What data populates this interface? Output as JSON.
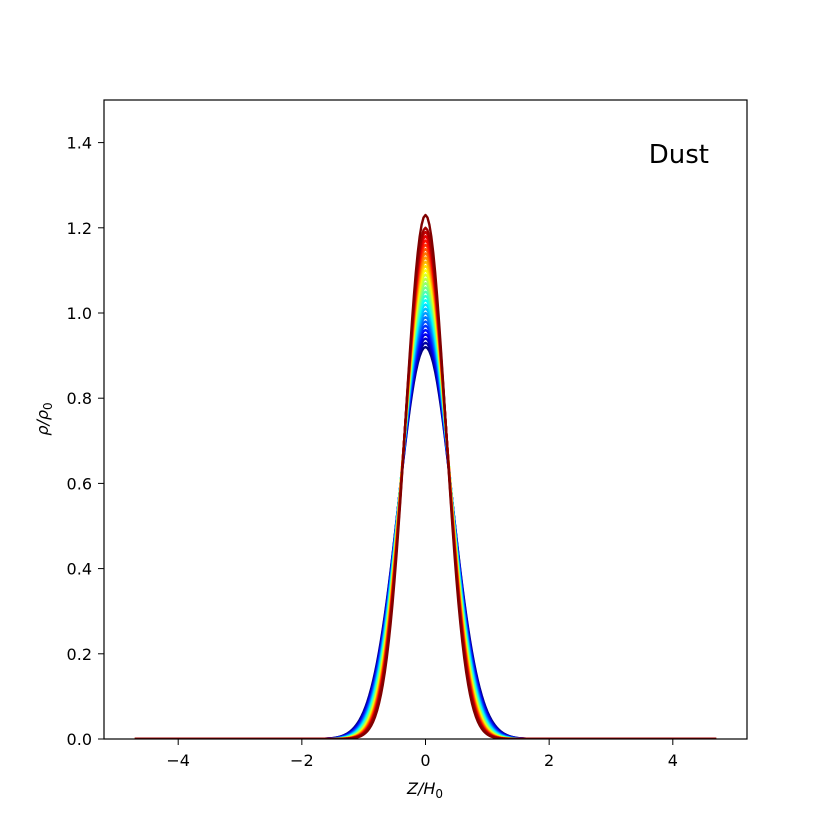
{
  "chart_data": {
    "type": "line",
    "title": "",
    "annotation": "Dust",
    "xlabel": "Z/H",
    "xlabel_sub": "0",
    "ylabel": "ρ/ρ",
    "ylabel_sub": "0",
    "xlim": [
      -5.2,
      5.2
    ],
    "ylim": [
      0.0,
      1.5
    ],
    "x_range": [
      -4.7,
      4.7
    ],
    "xticks": [
      -4,
      -2,
      0,
      2,
      4
    ],
    "xtick_labels": [
      "−4",
      "−2",
      "0",
      "2",
      "4"
    ],
    "yticks": [
      0.0,
      0.2,
      0.4,
      0.6,
      0.8,
      1.0,
      1.2,
      1.4
    ],
    "ytick_labels": [
      "0.0",
      "0.2",
      "0.4",
      "0.6",
      "0.8",
      "1.0",
      "1.2",
      "1.4"
    ],
    "grid": false,
    "legend": "none",
    "colormap": "jet",
    "series": [
      {
        "peak": 0.92
      },
      {
        "peak": 0.93
      },
      {
        "peak": 0.94
      },
      {
        "peak": 0.95
      },
      {
        "peak": 0.96
      },
      {
        "peak": 0.97
      },
      {
        "peak": 0.98
      },
      {
        "peak": 0.99
      },
      {
        "peak": 1.0
      },
      {
        "peak": 1.01
      },
      {
        "peak": 1.02
      },
      {
        "peak": 1.03
      },
      {
        "peak": 1.04
      },
      {
        "peak": 1.05
      },
      {
        "peak": 1.06
      },
      {
        "peak": 1.07
      },
      {
        "peak": 1.08
      },
      {
        "peak": 1.09
      },
      {
        "peak": 1.1
      },
      {
        "peak": 1.11
      },
      {
        "peak": 1.12
      },
      {
        "peak": 1.13
      },
      {
        "peak": 1.14
      },
      {
        "peak": 1.15
      },
      {
        "peak": 1.16
      },
      {
        "peak": 1.17
      },
      {
        "peak": 1.18
      },
      {
        "peak": 1.19
      },
      {
        "peak": 1.2
      },
      {
        "peak": 1.23
      }
    ]
  }
}
